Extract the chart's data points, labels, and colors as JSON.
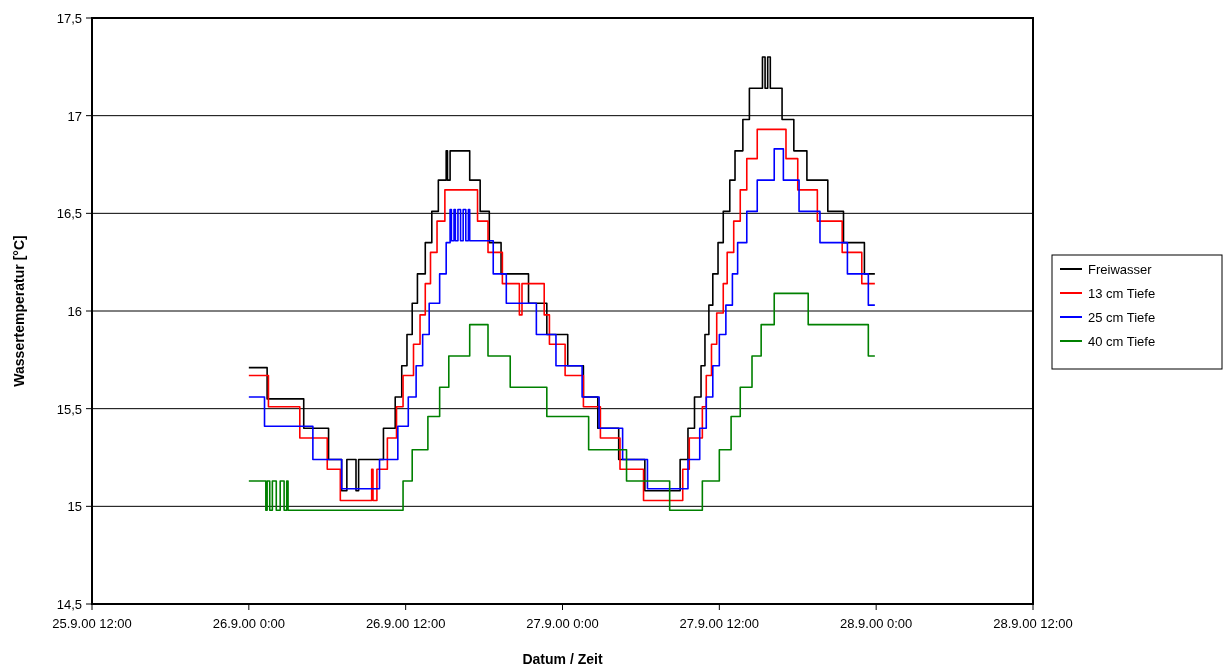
{
  "chart_data": {
    "type": "step",
    "xlabel": "Datum / Zeit",
    "ylabel": "Wassertemperatur [°C]",
    "xlim": [
      "2000-09-25T12:00",
      "2000-09-28T12:00"
    ],
    "xticks": [
      {
        "value": "2000-09-25T12:00",
        "label": "25.9.00 12:00"
      },
      {
        "value": "2000-09-26T00:00",
        "label": "26.9.00 0:00"
      },
      {
        "value": "2000-09-26T12:00",
        "label": "26.9.00 12:00"
      },
      {
        "value": "2000-09-27T00:00",
        "label": "27.9.00 0:00"
      },
      {
        "value": "2000-09-27T12:00",
        "label": "27.9.00 12:00"
      },
      {
        "value": "2000-09-28T00:00",
        "label": "28.9.00 0:00"
      },
      {
        "value": "2000-09-28T12:00",
        "label": "28.9.00 12:00"
      }
    ],
    "ylim": [
      14.5,
      17.5
    ],
    "yticks": [
      {
        "value": 14.5,
        "label": "14,5"
      },
      {
        "value": 15,
        "label": "15"
      },
      {
        "value": 15.5,
        "label": "15,5"
      },
      {
        "value": 16,
        "label": "16"
      },
      {
        "value": 16.5,
        "label": "16,5"
      },
      {
        "value": 17,
        "label": "17"
      },
      {
        "value": 17.5,
        "label": "17,5"
      }
    ],
    "grid": "y",
    "legend": "right",
    "series": [
      {
        "name": "Freiwasser",
        "color": "#000000",
        "x": [
          "2000-09-26T00:00",
          "2000-09-26T01:24",
          "2000-09-26T04:12",
          "2000-09-26T06:06",
          "2000-09-26T07:06",
          "2000-09-26T07:30",
          "2000-09-26T08:12",
          "2000-09-26T08:24",
          "2000-09-26T10:18",
          "2000-09-26T11:12",
          "2000-09-26T11:42",
          "2000-09-26T12:06",
          "2000-09-26T12:30",
          "2000-09-26T12:54",
          "2000-09-26T13:30",
          "2000-09-26T14:00",
          "2000-09-26T14:30",
          "2000-09-26T15:06",
          "2000-09-26T15:12",
          "2000-09-26T15:24",
          "2000-09-26T16:54",
          "2000-09-26T17:42",
          "2000-09-26T18:24",
          "2000-09-26T19:18",
          "2000-09-26T21:24",
          "2000-09-26T22:48",
          "2000-09-27T00:24",
          "2000-09-27T01:36",
          "2000-09-27T02:42",
          "2000-09-27T04:18",
          "2000-09-27T06:18",
          "2000-09-27T09:00",
          "2000-09-27T09:36",
          "2000-09-27T10:06",
          "2000-09-27T10:36",
          "2000-09-27T10:54",
          "2000-09-27T11:12",
          "2000-09-27T11:30",
          "2000-09-27T11:54",
          "2000-09-27T12:18",
          "2000-09-27T12:48",
          "2000-09-27T13:12",
          "2000-09-27T13:48",
          "2000-09-27T14:18",
          "2000-09-27T15:18",
          "2000-09-27T15:30",
          "2000-09-27T15:42",
          "2000-09-27T15:54",
          "2000-09-27T16:48",
          "2000-09-27T17:42",
          "2000-09-27T18:42",
          "2000-09-27T20:18",
          "2000-09-27T21:30",
          "2000-09-27T23:06",
          "2000-09-27T23:54"
        ],
        "values": [
          15.71,
          15.55,
          15.4,
          15.24,
          15.08,
          15.24,
          15.08,
          15.24,
          15.4,
          15.56,
          15.72,
          15.88,
          16.04,
          16.19,
          16.35,
          16.51,
          16.67,
          16.82,
          16.67,
          16.82,
          16.67,
          16.51,
          16.35,
          16.19,
          16.04,
          15.88,
          15.72,
          15.56,
          15.4,
          15.24,
          15.08,
          15.24,
          15.4,
          15.56,
          15.72,
          15.88,
          16.03,
          16.19,
          16.35,
          16.51,
          16.67,
          16.82,
          16.98,
          17.14,
          17.3,
          17.14,
          17.3,
          17.14,
          16.98,
          16.82,
          16.67,
          16.51,
          16.35,
          16.19,
          16.19
        ]
      },
      {
        "name": "13 cm Tiefe",
        "color": "#ff0000",
        "x": [
          "2000-09-26T00:00",
          "2000-09-26T01:30",
          "2000-09-26T03:54",
          "2000-09-26T06:00",
          "2000-09-26T07:00",
          "2000-09-26T09:24",
          "2000-09-26T09:30",
          "2000-09-26T09:48",
          "2000-09-26T10:36",
          "2000-09-26T11:18",
          "2000-09-26T11:48",
          "2000-09-26T12:36",
          "2000-09-26T13:06",
          "2000-09-26T13:30",
          "2000-09-26T13:54",
          "2000-09-26T14:24",
          "2000-09-26T15:00",
          "2000-09-26T17:30",
          "2000-09-26T18:18",
          "2000-09-26T19:24",
          "2000-09-26T20:42",
          "2000-09-26T20:54",
          "2000-09-26T22:36",
          "2000-09-26T23:00",
          "2000-09-27T00:12",
          "2000-09-27T01:36",
          "2000-09-27T02:54",
          "2000-09-27T04:24",
          "2000-09-27T06:12",
          "2000-09-27T09:12",
          "2000-09-27T09:42",
          "2000-09-27T10:42",
          "2000-09-27T11:00",
          "2000-09-27T11:24",
          "2000-09-27T11:48",
          "2000-09-27T12:18",
          "2000-09-27T12:36",
          "2000-09-27T13:06",
          "2000-09-27T13:36",
          "2000-09-27T14:06",
          "2000-09-27T14:54",
          "2000-09-27T17:06",
          "2000-09-27T18:00",
          "2000-09-27T19:30",
          "2000-09-27T21:24",
          "2000-09-27T22:54",
          "2000-09-27T23:54"
        ],
        "values": [
          15.67,
          15.51,
          15.35,
          15.19,
          15.03,
          15.19,
          15.03,
          15.19,
          15.35,
          15.51,
          15.67,
          15.83,
          15.98,
          16.14,
          16.3,
          16.46,
          16.62,
          16.46,
          16.3,
          16.14,
          15.98,
          16.14,
          15.98,
          15.83,
          15.67,
          15.51,
          15.35,
          15.19,
          15.03,
          15.19,
          15.35,
          15.51,
          15.67,
          15.83,
          15.99,
          16.14,
          16.3,
          16.46,
          16.62,
          16.78,
          16.93,
          16.78,
          16.62,
          16.46,
          16.3,
          16.14,
          16.14
        ]
      },
      {
        "name": "25 cm Tiefe",
        "color": "#0000ff",
        "x": [
          "2000-09-26T00:00",
          "2000-09-26T01:12",
          "2000-09-26T04:54",
          "2000-09-26T07:06",
          "2000-09-26T10:00",
          "2000-09-26T11:24",
          "2000-09-26T12:12",
          "2000-09-26T12:48",
          "2000-09-26T13:18",
          "2000-09-26T13:48",
          "2000-09-26T14:36",
          "2000-09-26T15:06",
          "2000-09-26T15:24",
          "2000-09-26T15:30",
          "2000-09-26T15:42",
          "2000-09-26T15:48",
          "2000-09-26T16:00",
          "2000-09-26T16:12",
          "2000-09-26T16:24",
          "2000-09-26T16:36",
          "2000-09-26T16:48",
          "2000-09-26T16:54",
          "2000-09-26T18:42",
          "2000-09-26T19:42",
          "2000-09-26T22:00",
          "2000-09-26T23:30",
          "2000-09-27T01:30",
          "2000-09-27T02:48",
          "2000-09-27T04:36",
          "2000-09-27T06:30",
          "2000-09-27T09:36",
          "2000-09-27T10:30",
          "2000-09-27T11:00",
          "2000-09-27T11:30",
          "2000-09-27T12:00",
          "2000-09-27T12:30",
          "2000-09-27T13:00",
          "2000-09-27T13:24",
          "2000-09-27T14:06",
          "2000-09-27T14:54",
          "2000-09-27T16:12",
          "2000-09-27T16:54",
          "2000-09-27T18:06",
          "2000-09-27T19:42",
          "2000-09-27T21:48",
          "2000-09-27T23:24",
          "2000-09-27T23:54"
        ],
        "values": [
          15.56,
          15.41,
          15.24,
          15.09,
          15.24,
          15.41,
          15.56,
          15.72,
          15.88,
          16.04,
          16.19,
          16.35,
          16.52,
          16.36,
          16.52,
          16.36,
          16.52,
          16.36,
          16.52,
          16.36,
          16.52,
          16.36,
          16.19,
          16.04,
          15.88,
          15.72,
          15.56,
          15.4,
          15.24,
          15.09,
          15.24,
          15.4,
          15.56,
          15.72,
          15.88,
          16.03,
          16.19,
          16.35,
          16.51,
          16.67,
          16.83,
          16.67,
          16.51,
          16.35,
          16.19,
          16.03,
          16.03
        ]
      },
      {
        "name": "40 cm Tiefe",
        "color": "#008000",
        "x": [
          "2000-09-26T00:00",
          "2000-09-26T01:18",
          "2000-09-26T01:24",
          "2000-09-26T01:36",
          "2000-09-26T01:48",
          "2000-09-26T02:06",
          "2000-09-26T02:24",
          "2000-09-26T02:42",
          "2000-09-26T02:54",
          "2000-09-26T03:00",
          "2000-09-26T11:48",
          "2000-09-26T12:30",
          "2000-09-26T13:42",
          "2000-09-26T14:36",
          "2000-09-26T15:18",
          "2000-09-26T16:54",
          "2000-09-26T18:18",
          "2000-09-26T20:00",
          "2000-09-26T22:48",
          "2000-09-27T02:00",
          "2000-09-27T04:54",
          "2000-09-27T08:12",
          "2000-09-27T10:42",
          "2000-09-27T12:00",
          "2000-09-27T12:54",
          "2000-09-27T13:36",
          "2000-09-27T14:30",
          "2000-09-27T15:12",
          "2000-09-27T16:12",
          "2000-09-27T18:48",
          "2000-09-27T23:24",
          "2000-09-27T23:54"
        ],
        "values": [
          15.13,
          14.98,
          15.13,
          14.98,
          15.13,
          14.98,
          15.13,
          14.98,
          15.13,
          14.98,
          15.13,
          15.29,
          15.46,
          15.61,
          15.77,
          15.93,
          15.77,
          15.61,
          15.46,
          15.29,
          15.13,
          14.98,
          15.13,
          15.29,
          15.46,
          15.61,
          15.77,
          15.93,
          16.09,
          15.93,
          15.77,
          15.77
        ]
      }
    ]
  }
}
